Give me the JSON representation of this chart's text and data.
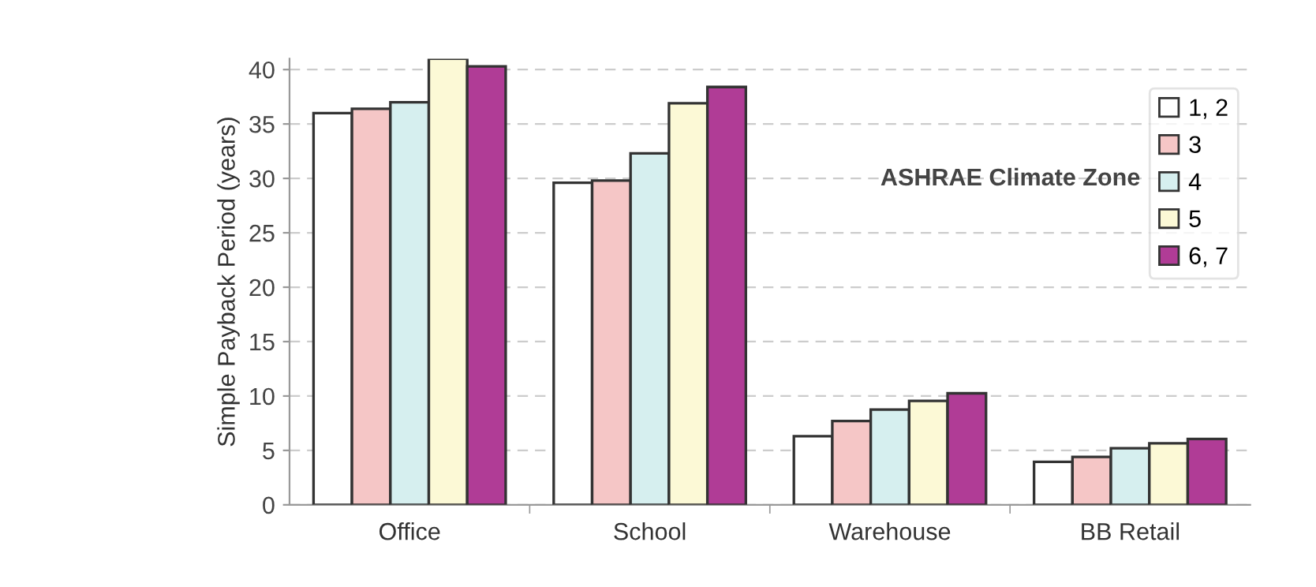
{
  "chart_data": {
    "type": "bar",
    "ylabel": "Simple Payback Period (years)",
    "legend_title": "ASHRAE Climate Zone",
    "categories": [
      "Office",
      "School",
      "Warehouse",
      "BB Retail"
    ],
    "series": [
      {
        "name": "1, 2",
        "color": "#ffffff",
        "values": [
          36,
          29.6,
          6.3,
          3.95
        ]
      },
      {
        "name": "3",
        "color": "#f5c6c6",
        "values": [
          36.4,
          29.8,
          7.7,
          4.4
        ]
      },
      {
        "name": "4",
        "color": "#d6efef",
        "values": [
          37,
          32.3,
          8.75,
          5.2
        ]
      },
      {
        "name": "5",
        "color": "#fcf9d6",
        "values": [
          41,
          36.9,
          9.55,
          5.65
        ]
      },
      {
        "name": "6, 7",
        "color": "#b03c96",
        "values": [
          40.3,
          38.4,
          10.25,
          6.05
        ]
      }
    ],
    "ylim": [
      0,
      41
    ],
    "yticks": [
      0,
      5,
      10,
      15,
      20,
      25,
      30,
      35,
      40
    ],
    "grid": "y",
    "legend": "right"
  }
}
